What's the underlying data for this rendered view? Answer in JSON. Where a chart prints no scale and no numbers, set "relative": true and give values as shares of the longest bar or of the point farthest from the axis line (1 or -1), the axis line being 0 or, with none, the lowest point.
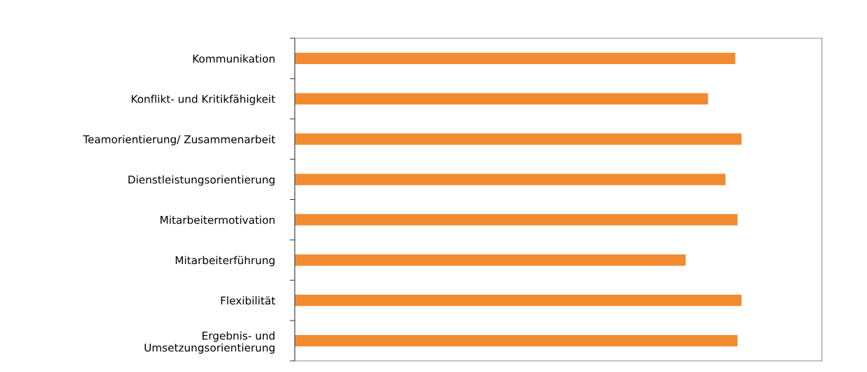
{
  "chart_data": {
    "type": "bar",
    "orientation": "horizontal",
    "relative": true,
    "categories": [
      "Kommunikation",
      "Konflikt- und Kritikfähigkeit",
      "Teamorientierung/ Zusammenarbeit",
      "Dienstleistungsorientierung",
      "Mitarbeitermotivation",
      "Mitarbeiterführung",
      "Flexibilität",
      "Ergebnis- und\nUmsetzungsorientierung"
    ],
    "values": [
      0.986,
      0.925,
      1,
      0.964,
      0.991,
      0.875,
      1,
      0.991
    ],
    "color": "#f28a30",
    "grid": false,
    "legend": false
  }
}
